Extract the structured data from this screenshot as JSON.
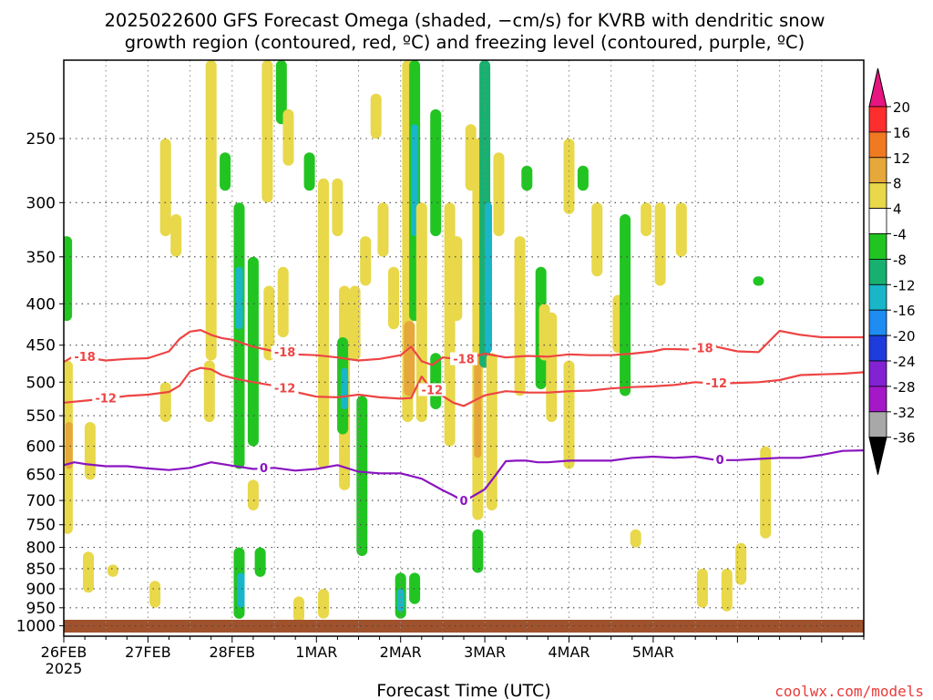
{
  "chart_data": {
    "type": "heatmap",
    "title": "2025022600 GFS Forecast Omega (shaded, −cm/s) for KVRB with dendritic snow growth region (contoured, red, ºC) and freezing level (contoured, purple, ºC)",
    "title_lines": [
      "2025022600  GFS Forecast Omega (shaded, −cm/s) for KVRB with dendritic snow",
      "growth region (contoured, red, ºC) and freezing level (contoured, purple, ºC)"
    ],
    "xlabel": "Forecast Time (UTC)",
    "ylabel": "",
    "credit": "coolwx.com/models",
    "x_range_hours": [
      0,
      228
    ],
    "y_scale": "log-pressure",
    "y_range_hPa": [
      1030,
      200
    ],
    "grid": true,
    "x_ticks": [
      {
        "hour": 0,
        "label": "26FEB",
        "sub": "2025"
      },
      {
        "hour": 24,
        "label": "27FEB",
        "sub": ""
      },
      {
        "hour": 48,
        "label": "28FEB",
        "sub": ""
      },
      {
        "hour": 72,
        "label": "1MAR",
        "sub": ""
      },
      {
        "hour": 96,
        "label": "2MAR",
        "sub": ""
      },
      {
        "hour": 120,
        "label": "3MAR",
        "sub": ""
      },
      {
        "hour": 144,
        "label": "4MAR",
        "sub": ""
      },
      {
        "hour": 168,
        "label": "5MAR",
        "sub": ""
      }
    ],
    "y_ticks": [
      250,
      300,
      350,
      400,
      450,
      500,
      550,
      600,
      650,
      700,
      750,
      800,
      850,
      900,
      950,
      1000
    ],
    "colorbar": {
      "labels": [
        "20",
        "16",
        "12",
        "8",
        "4",
        "-4",
        "-8",
        "-12",
        "-16",
        "-20",
        "-24",
        "-28",
        "-32",
        "-36"
      ],
      "colors": [
        "#ff2e2e",
        "#f07a22",
        "#e6a83a",
        "#e8d84a",
        "#ffffff",
        "#22c422",
        "#18b070",
        "#18b6c8",
        "#1e8cf0",
        "#1e3cdc",
        "#8222d2",
        "#a418c8",
        "#a8a8a8"
      ],
      "top_arrow_color": "#e6157f",
      "bottom_arrow_color": "#000000"
    },
    "series": [
      {
        "name": "-18",
        "color": "#ee4444",
        "label_hours": [
          6,
          63,
          114,
          182
        ],
        "x": [
          0,
          3,
          6,
          12,
          18,
          24,
          30,
          33,
          36,
          39,
          42,
          45,
          48,
          54,
          60,
          66,
          72,
          78,
          84,
          90,
          96,
          99,
          102,
          105,
          108,
          114,
          120,
          126,
          132,
          138,
          144,
          150,
          156,
          162,
          168,
          171,
          174,
          180,
          186,
          192,
          198,
          204,
          210,
          216,
          222,
          228
        ],
        "y": [
          472,
          464,
          466,
          470,
          468,
          467,
          458,
          442,
          433,
          431,
          437,
          441,
          443,
          452,
          458,
          462,
          463,
          466,
          470,
          468,
          463,
          452,
          471,
          476,
          466,
          469,
          461,
          466,
          464,
          465,
          462,
          463,
          463,
          461,
          458,
          455,
          455,
          456,
          452,
          458,
          459,
          432,
          437,
          440,
          440,
          440
        ]
      },
      {
        "name": "-12",
        "color": "#ee4444",
        "label_hours": [
          12,
          63,
          105,
          186
        ],
        "x": [
          0,
          6,
          12,
          18,
          24,
          30,
          33,
          36,
          39,
          42,
          45,
          48,
          54,
          60,
          66,
          72,
          78,
          84,
          90,
          96,
          99,
          102,
          105,
          108,
          111,
          114,
          120,
          126,
          132,
          138,
          144,
          150,
          156,
          162,
          168,
          174,
          180,
          186,
          192,
          198,
          204,
          210,
          216,
          222,
          228
        ],
        "y": [
          530,
          527,
          524,
          520,
          518,
          514,
          505,
          485,
          480,
          482,
          490,
          494,
          500,
          505,
          514,
          521,
          522,
          518,
          522,
          524,
          523,
          492,
          512,
          520,
          530,
          535,
          519,
          513,
          515,
          515,
          513,
          512,
          509,
          507,
          506,
          504,
          500,
          502,
          501,
          500,
          497,
          490,
          489,
          488,
          486
        ]
      },
      {
        "name": "0",
        "color": "#8a14c0",
        "label_hours": [
          57,
          114,
          187
        ],
        "x": [
          0,
          3,
          6,
          12,
          18,
          24,
          30,
          36,
          42,
          48,
          54,
          60,
          66,
          72,
          78,
          84,
          90,
          96,
          102,
          108,
          111,
          114,
          117,
          120,
          123,
          126,
          129,
          132,
          135,
          138,
          144,
          150,
          156,
          162,
          168,
          174,
          180,
          186,
          192,
          198,
          204,
          210,
          216,
          222,
          228
        ],
        "y": [
          633,
          628,
          631,
          635,
          635,
          639,
          642,
          638,
          628,
          634,
          640,
          638,
          643,
          640,
          633,
          645,
          648,
          648,
          658,
          680,
          690,
          702,
          690,
          678,
          652,
          626,
          625,
          625,
          628,
          628,
          625,
          625,
          625,
          620,
          618,
          620,
          618,
          624,
          624,
          622,
          620,
          620,
          615,
          608,
          607
        ]
      }
    ],
    "shading": [
      {
        "x": 1,
        "p": [
          470,
          770
        ],
        "v": 6
      },
      {
        "x": 1.5,
        "p": [
          560,
          640
        ],
        "v": 10
      },
      {
        "x": 0.8,
        "p": [
          330,
          420
        ],
        "v": -6
      },
      {
        "x": 7.5,
        "p": [
          560,
          660
        ],
        "v": 4
      },
      {
        "x": 7,
        "p": [
          810,
          910
        ],
        "v": 4
      },
      {
        "x": 14,
        "p": [
          840,
          870
        ],
        "v": 4
      },
      {
        "x": 26,
        "p": [
          880,
          950
        ],
        "v": 4
      },
      {
        "x": 29,
        "p": [
          500,
          560
        ],
        "v": 4
      },
      {
        "x": 29,
        "p": [
          250,
          330
        ],
        "v": 4
      },
      {
        "x": 32,
        "p": [
          310,
          350
        ],
        "v": 4
      },
      {
        "x": 42,
        "p": [
          200,
          470
        ],
        "v": 5
      },
      {
        "x": 41.5,
        "p": [
          470,
          560
        ],
        "v": 4
      },
      {
        "x": 46,
        "p": [
          260,
          290
        ],
        "v": -6
      },
      {
        "x": 50,
        "p": [
          300,
          640
        ],
        "v": -7
      },
      {
        "x": 50,
        "p": [
          360,
          430
        ],
        "v": -12
      },
      {
        "x": 54,
        "p": [
          350,
          600
        ],
        "v": -6
      },
      {
        "x": 50,
        "p": [
          800,
          980
        ],
        "v": -7
      },
      {
        "x": 50.5,
        "p": [
          860,
          950
        ],
        "v": -12
      },
      {
        "x": 54,
        "p": [
          660,
          720
        ],
        "v": 4
      },
      {
        "x": 56,
        "p": [
          800,
          870
        ],
        "v": -6
      },
      {
        "x": 58,
        "p": [
          200,
          300
        ],
        "v": 4
      },
      {
        "x": 58.5,
        "p": [
          380,
          470
        ],
        "v": 4
      },
      {
        "x": 62,
        "p": [
          200,
          240
        ],
        "v": -6
      },
      {
        "x": 62.5,
        "p": [
          360,
          440
        ],
        "v": 4
      },
      {
        "x": 64,
        "p": [
          230,
          270
        ],
        "v": 4
      },
      {
        "x": 67,
        "p": [
          920,
          990
        ],
        "v": 4
      },
      {
        "x": 70,
        "p": [
          260,
          290
        ],
        "v": -7
      },
      {
        "x": 74,
        "p": [
          280,
          640
        ],
        "v": 4
      },
      {
        "x": 74,
        "p": [
          900,
          980
        ],
        "v": 4
      },
      {
        "x": 78,
        "p": [
          280,
          330
        ],
        "v": 4
      },
      {
        "x": 80,
        "p": [
          380,
          680
        ],
        "v": 4
      },
      {
        "x": 79.5,
        "p": [
          440,
          580
        ],
        "v": -6
      },
      {
        "x": 80,
        "p": [
          480,
          540
        ],
        "v": -12
      },
      {
        "x": 83,
        "p": [
          380,
          470
        ],
        "v": 4
      },
      {
        "x": 85,
        "p": [
          520,
          820
        ],
        "v": -6
      },
      {
        "x": 86,
        "p": [
          330,
          380
        ],
        "v": 4
      },
      {
        "x": 89,
        "p": [
          220,
          250
        ],
        "v": 4
      },
      {
        "x": 91,
        "p": [
          300,
          350
        ],
        "v": 4
      },
      {
        "x": 94,
        "p": [
          360,
          430
        ],
        "v": 4
      },
      {
        "x": 98,
        "p": [
          200,
          560
        ],
        "v": 5
      },
      {
        "x": 98.5,
        "p": [
          420,
          520
        ],
        "v": 9
      },
      {
        "x": 96,
        "p": [
          860,
          980
        ],
        "v": -7
      },
      {
        "x": 96,
        "p": [
          900,
          960
        ],
        "v": -12
      },
      {
        "x": 100,
        "p": [
          200,
          420
        ],
        "v": -7
      },
      {
        "x": 100,
        "p": [
          240,
          330
        ],
        "v": -12
      },
      {
        "x": 102,
        "p": [
          300,
          560
        ],
        "v": 4
      },
      {
        "x": 106,
        "p": [
          230,
          330
        ],
        "v": -6
      },
      {
        "x": 106,
        "p": [
          460,
          540
        ],
        "v": -6
      },
      {
        "x": 110,
        "p": [
          300,
          600
        ],
        "v": 4
      },
      {
        "x": 112,
        "p": [
          330,
          420
        ],
        "v": 4
      },
      {
        "x": 116,
        "p": [
          240,
          290
        ],
        "v": 4
      },
      {
        "x": 118,
        "p": [
          250,
          740
        ],
        "v": 5
      },
      {
        "x": 118,
        "p": [
          460,
          620
        ],
        "v": 11
      },
      {
        "x": 120,
        "p": [
          200,
          480
        ],
        "v": -8
      },
      {
        "x": 121,
        "p": [
          300,
          460
        ],
        "v": -12
      },
      {
        "x": 122,
        "p": [
          460,
          720
        ],
        "v": 4
      },
      {
        "x": 118,
        "p": [
          760,
          860
        ],
        "v": -6
      },
      {
        "x": 124,
        "p": [
          260,
          330
        ],
        "v": 4
      },
      {
        "x": 130,
        "p": [
          330,
          520
        ],
        "v": 4
      },
      {
        "x": 132,
        "p": [
          270,
          290
        ],
        "v": -6
      },
      {
        "x": 136,
        "p": [
          360,
          510
        ],
        "v": -7
      },
      {
        "x": 139,
        "p": [
          410,
          560
        ],
        "v": 4
      },
      {
        "x": 144,
        "p": [
          250,
          310
        ],
        "v": 4
      },
      {
        "x": 144,
        "p": [
          470,
          640
        ],
        "v": 4
      },
      {
        "x": 148,
        "p": [
          270,
          290
        ],
        "v": -6
      },
      {
        "x": 152,
        "p": [
          300,
          370
        ],
        "v": 4
      },
      {
        "x": 158,
        "p": [
          390,
          460
        ],
        "v": 4
      },
      {
        "x": 160,
        "p": [
          310,
          520
        ],
        "v": -6
      },
      {
        "x": 163,
        "p": [
          760,
          800
        ],
        "v": 4
      },
      {
        "x": 166,
        "p": [
          300,
          330
        ],
        "v": 4
      },
      {
        "x": 170,
        "p": [
          300,
          380
        ],
        "v": 4
      },
      {
        "x": 176,
        "p": [
          300,
          350
        ],
        "v": 4
      },
      {
        "x": 182,
        "p": [
          850,
          950
        ],
        "v": 4
      },
      {
        "x": 189,
        "p": [
          850,
          960
        ],
        "v": 4
      },
      {
        "x": 193,
        "p": [
          790,
          890
        ],
        "v": 4
      },
      {
        "x": 198,
        "p": [
          370,
          380
        ],
        "v": -6
      },
      {
        "x": 200,
        "p": [
          600,
          780
        ],
        "v": 4
      },
      {
        "x": 100,
        "p": [
          860,
          940
        ],
        "v": -6
      },
      {
        "x": 137,
        "p": [
          400,
          470
        ],
        "v": 4
      }
    ]
  }
}
